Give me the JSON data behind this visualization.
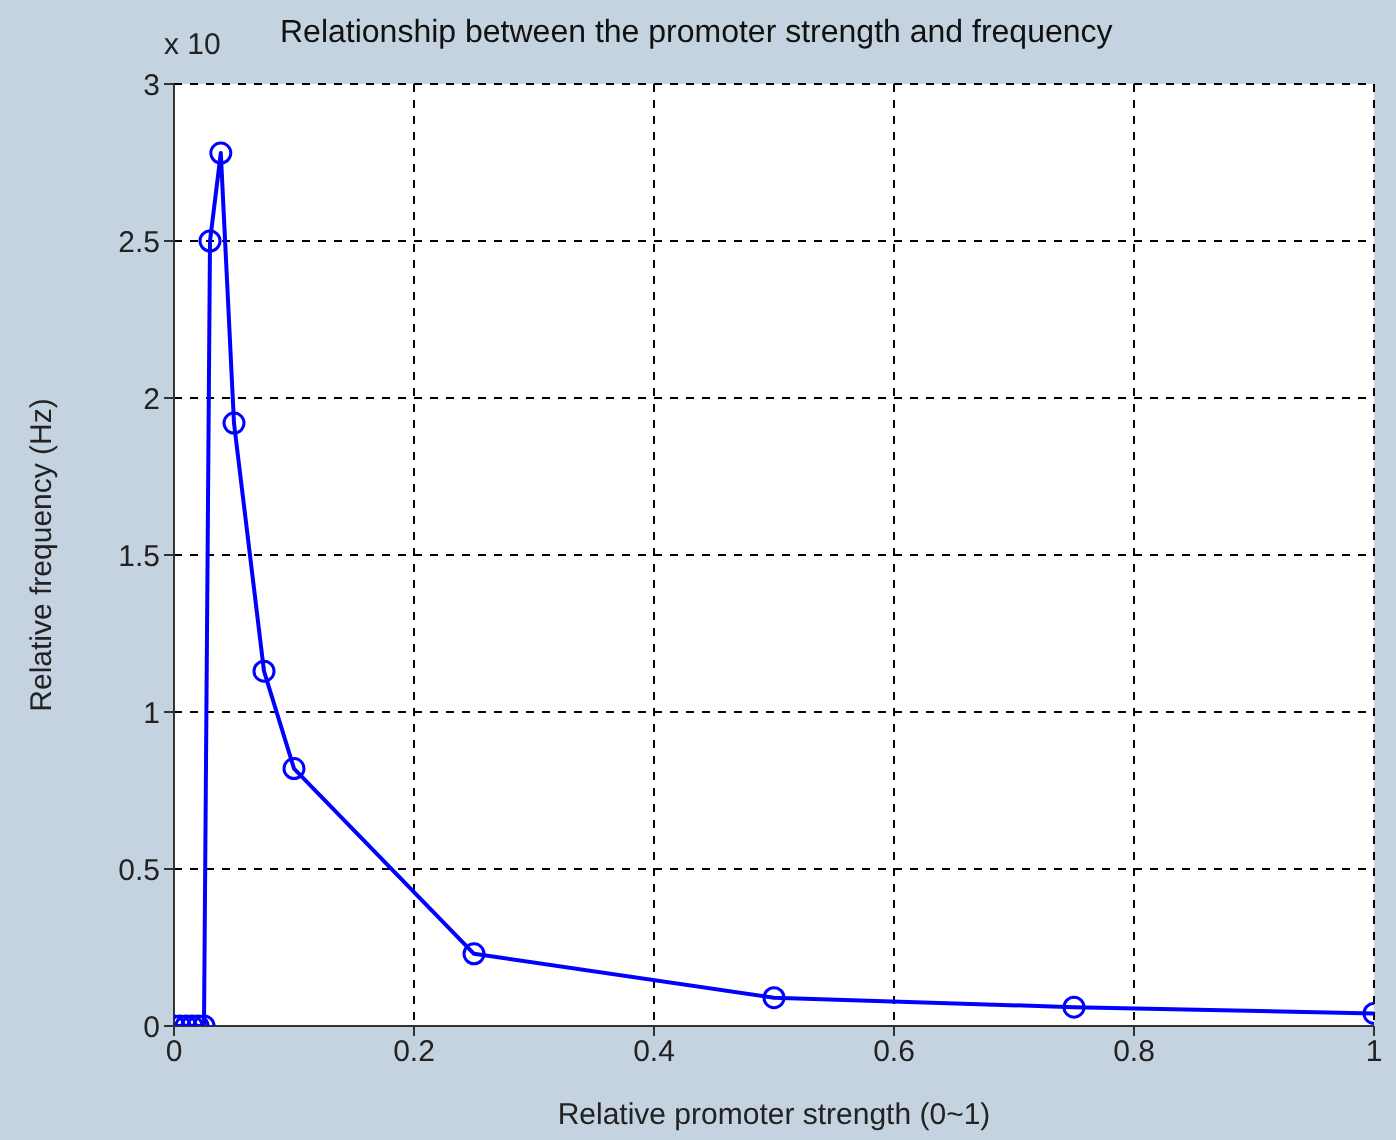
{
  "chart_data": {
    "type": "line",
    "title": "Relationship between the promoter strength and frequency",
    "xlabel": "Relative promoter strength (0~1)",
    "ylabel": "Relative frequency (Hz)",
    "annotations": [
      "x 10"
    ],
    "x": [
      0,
      0.005,
      0.01,
      0.015,
      0.02,
      0.025,
      0.03,
      0.039,
      0.05,
      0.075,
      0.1,
      0.25,
      0.5,
      0.75,
      1
    ],
    "series": [
      {
        "color": "#0000ff",
        "values": [
          0,
          0,
          0,
          0,
          0,
          0,
          2.5,
          2.78,
          1.92,
          1.13,
          0.82,
          0.23,
          0.09,
          0.06,
          0.04
        ]
      }
    ],
    "xlim": [
      0,
      1
    ],
    "xticks": [
      0,
      0.2,
      0.4,
      0.6,
      0.8,
      1
    ],
    "ylim": [
      0,
      3
    ],
    "yticks": [
      0,
      0.5,
      1,
      1.5,
      2,
      2.5,
      3
    ],
    "grid": true,
    "marker": "circle",
    "line_style": "solid",
    "legend": false
  }
}
